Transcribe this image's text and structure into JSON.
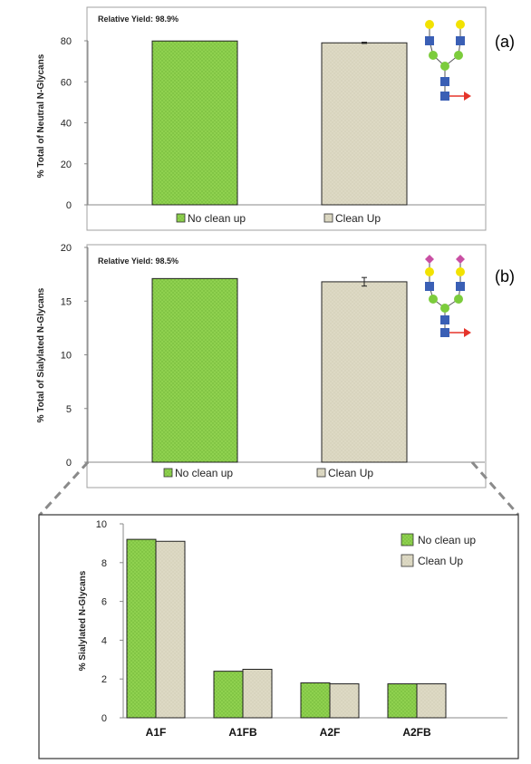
{
  "colors": {
    "no_clean_up": "#8fd14f",
    "clean_up": "#ddd9c4",
    "bar_edge": "#222222",
    "frame": "#a0a0a0",
    "sialic": "#c94fa3",
    "galactose": "#f2e200",
    "glcnac": "#3a5fb5",
    "mannose": "#7ccc3c",
    "fucose": "#e5342b",
    "dashed_connector": "#8a8a8a"
  },
  "icons": [
    "neutral-glycan-icon",
    "sialylated-glycan-icon"
  ],
  "chart_data": [
    {
      "id": "a",
      "type": "bar",
      "panel_label": "(a)",
      "annotation": "Relative Yield: 98.9%",
      "ylabel": "% Total of Neutral  N-Glycans",
      "xlabel": "",
      "ylim": [
        0,
        80
      ],
      "yticks": [
        "0",
        "20",
        "40",
        "60",
        "80"
      ],
      "series": [
        {
          "name": "No clean up",
          "values": [
            79.9
          ],
          "error": [
            0
          ]
        },
        {
          "name": "Clean Up",
          "values": [
            79.0
          ],
          "error": [
            0.3
          ]
        }
      ],
      "legend": "bottom"
    },
    {
      "id": "b",
      "type": "bar",
      "panel_label": "(b)",
      "annotation": "Relative Yield: 98.5%",
      "ylabel": "% Total of Sialylated N-Glycans",
      "xlabel": "",
      "ylim": [
        0,
        20
      ],
      "yticks": [
        "0",
        "5",
        "10",
        "15",
        "20"
      ],
      "series": [
        {
          "name": "No clean up",
          "values": [
            17.1
          ],
          "error": [
            0
          ]
        },
        {
          "name": "Clean Up",
          "values": [
            16.8
          ],
          "error": [
            0.4
          ]
        }
      ],
      "legend": "bottom"
    },
    {
      "id": "c",
      "type": "bar",
      "ylabel": "% Sialylated N-Glycans",
      "xlabel": "",
      "ylim": [
        0,
        10
      ],
      "yticks": [
        "0",
        "2",
        "4",
        "6",
        "8",
        "10"
      ],
      "categories": [
        "A1F",
        "A1FB",
        "A2F",
        "A2FB"
      ],
      "series": [
        {
          "name": "No clean up",
          "values": [
            9.2,
            2.4,
            1.8,
            1.75
          ]
        },
        {
          "name": "Clean Up",
          "values": [
            9.1,
            2.5,
            1.75,
            1.75
          ]
        }
      ],
      "legend": "top-right"
    }
  ]
}
